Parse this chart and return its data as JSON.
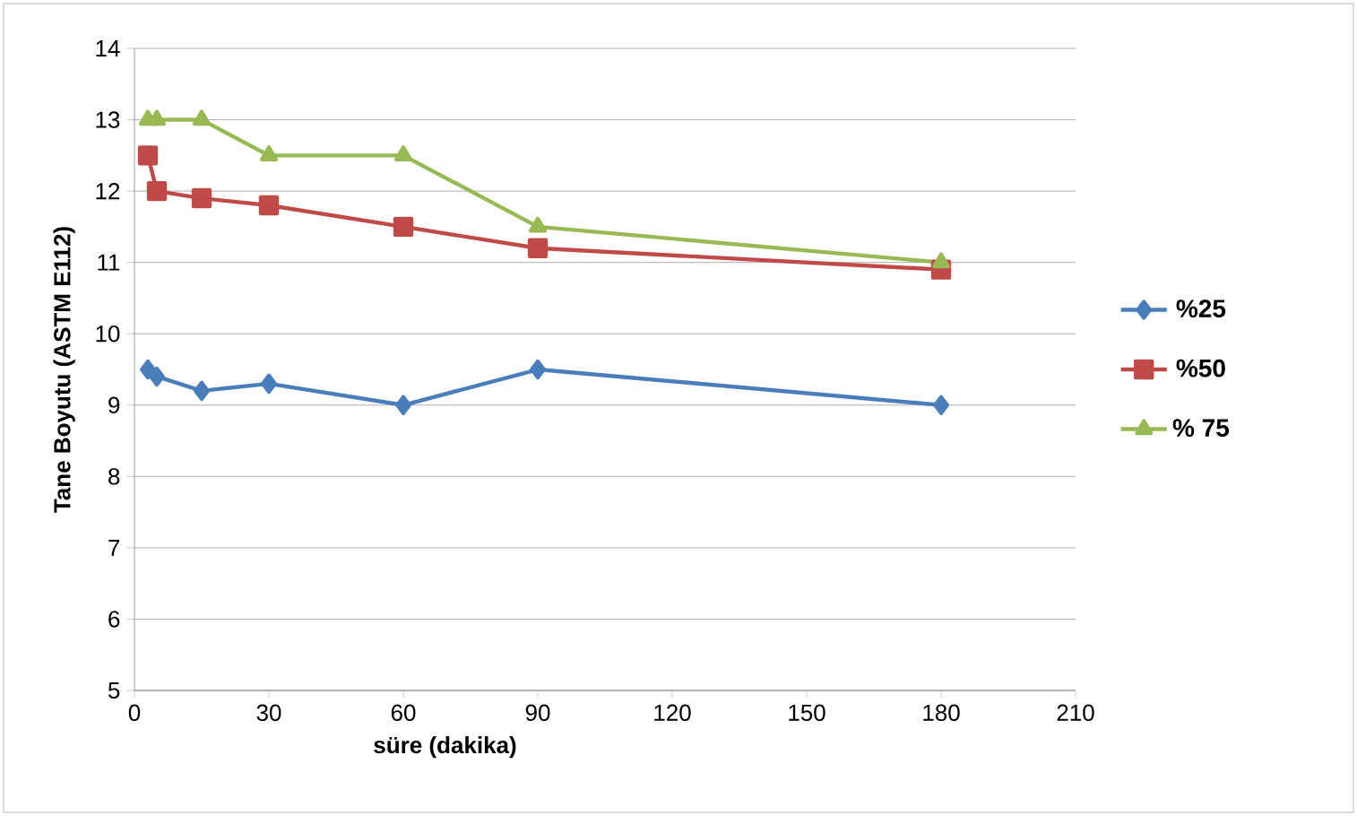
{
  "chart_data": {
    "type": "line",
    "xlabel": "süre (dakika)",
    "ylabel": "Tane Boyutu (ASTM E112)",
    "x": [
      3,
      5,
      15,
      30,
      60,
      90,
      180
    ],
    "series": [
      {
        "name": "%25",
        "color": "#4a7ebb",
        "marker": "diamond",
        "values": [
          9.5,
          9.4,
          9.2,
          9.3,
          9.0,
          9.5,
          9.0
        ]
      },
      {
        "name": "%50",
        "color": "#be4b48",
        "marker": "square",
        "values": [
          12.5,
          12.0,
          11.9,
          11.8,
          11.5,
          11.2,
          10.9
        ]
      },
      {
        "name": "% 75",
        "color": "#98b954",
        "marker": "triangle",
        "values": [
          13,
          13,
          13,
          12.5,
          12.5,
          11.5,
          11
        ]
      }
    ],
    "xlim": [
      0,
      210
    ],
    "xticks": [
      0,
      30,
      60,
      90,
      120,
      150,
      180,
      210
    ],
    "ylim": [
      5,
      14
    ],
    "yticks": [
      5,
      6,
      7,
      8,
      9,
      10,
      11,
      12,
      13,
      14
    ],
    "grid": "y",
    "legend": "right"
  }
}
